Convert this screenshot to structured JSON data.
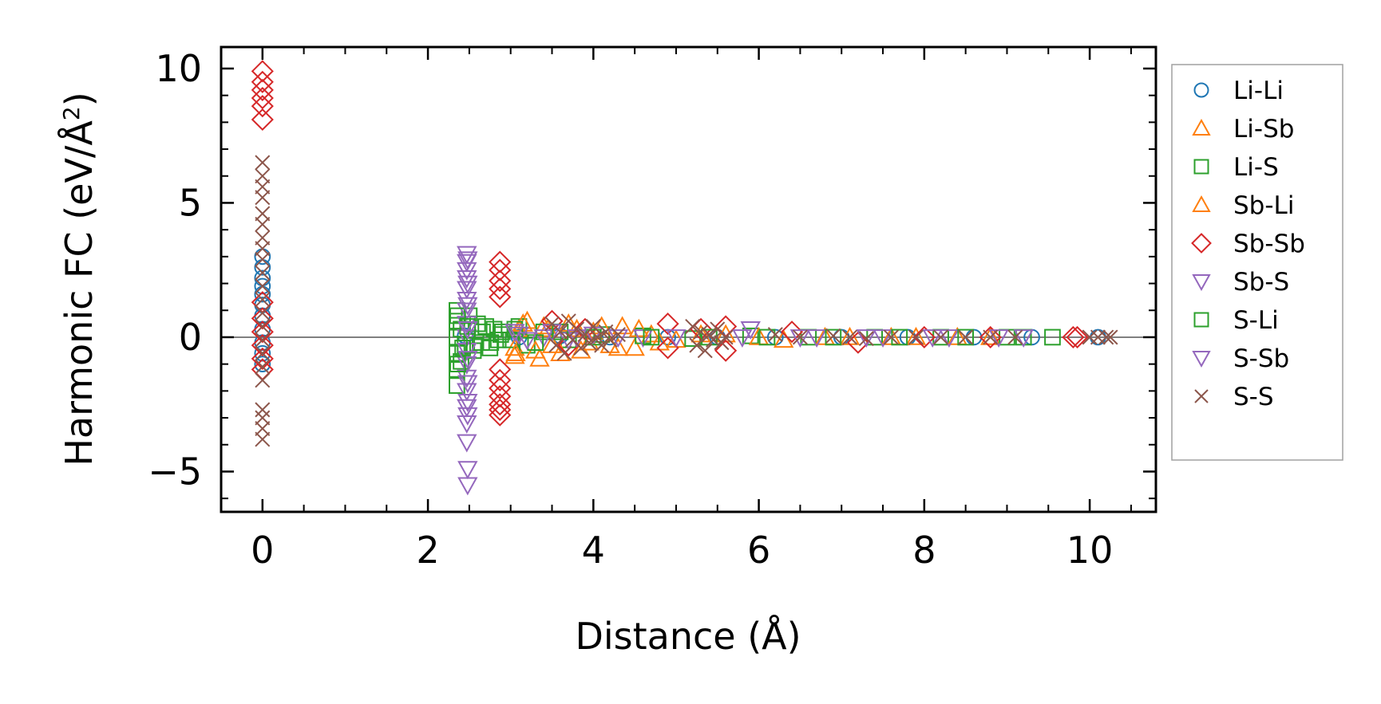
{
  "chart_data": {
    "type": "scatter",
    "xlabel": "Distance (Å)",
    "ylabel_main": "Harmonic FC (eV/Å",
    "ylabel_sup": "2",
    "ylabel_close": ")",
    "xlim": [
      -0.5,
      10.8
    ],
    "ylim": [
      -6.5,
      10.8
    ],
    "x_ticks": [
      0,
      2,
      4,
      6,
      8,
      10
    ],
    "x_tick_labels": [
      "0",
      "2",
      "4",
      "6",
      "8",
      "10"
    ],
    "y_ticks": [
      -5,
      0,
      5,
      10
    ],
    "y_tick_labels": [
      "−5",
      "0",
      "5",
      "10"
    ],
    "zero_line": true,
    "grid": false,
    "legend_position": "outside-right",
    "colors": {
      "blue": "#1f77b4",
      "orange": "#ff7f0e",
      "green": "#2ca02c",
      "red": "#d62728",
      "purple": "#9467bd",
      "brown": "#8c564b",
      "zero_line": "#808080"
    },
    "series": [
      {
        "name": "Li-Li",
        "marker": "circle",
        "color": "#1f77b4",
        "points": [
          [
            0,
            3.0
          ],
          [
            0,
            2.6
          ],
          [
            0,
            2.2
          ],
          [
            0,
            1.9
          ],
          [
            0,
            1.6
          ],
          [
            0,
            1.2
          ],
          [
            0,
            0.8
          ],
          [
            0,
            0.3
          ],
          [
            0,
            -0.2
          ],
          [
            0,
            -0.6
          ],
          [
            0,
            -1.0
          ],
          [
            2.45,
            0.05
          ],
          [
            3.1,
            0.0
          ],
          [
            3.6,
            0.05
          ],
          [
            4.2,
            0.0
          ],
          [
            4.9,
            0.0
          ],
          [
            5.5,
            0.0
          ],
          [
            6.2,
            0.0
          ],
          [
            7.0,
            0.0
          ],
          [
            7.8,
            0.0
          ],
          [
            8.6,
            0.0
          ],
          [
            9.3,
            0.0
          ],
          [
            10.1,
            0.0
          ]
        ]
      },
      {
        "name": "Li-Sb",
        "marker": "triangle-up",
        "color": "#ff7f0e",
        "points": [
          [
            3.05,
            -0.7
          ],
          [
            3.05,
            -0.4
          ],
          [
            3.1,
            0.3
          ],
          [
            3.2,
            0.6
          ],
          [
            3.35,
            -0.8
          ],
          [
            3.4,
            0.4
          ],
          [
            3.5,
            -0.3
          ],
          [
            3.7,
            0.5
          ],
          [
            3.85,
            -0.5
          ],
          [
            4.0,
            0.2
          ],
          [
            4.2,
            -0.3
          ],
          [
            4.35,
            0.4
          ],
          [
            4.5,
            -0.4
          ],
          [
            4.7,
            0.1
          ],
          [
            5.0,
            -0.1
          ],
          [
            5.6,
            0.1
          ],
          [
            6.3,
            -0.1
          ],
          [
            7.1,
            0.0
          ],
          [
            7.9,
            0.0
          ],
          [
            8.8,
            0.0
          ]
        ]
      },
      {
        "name": "Li-S",
        "marker": "square",
        "color": "#2ca02c",
        "points": [
          [
            2.35,
            -1.8
          ],
          [
            2.35,
            -1.2
          ],
          [
            2.35,
            -0.6
          ],
          [
            2.35,
            0.0
          ],
          [
            2.35,
            0.6
          ],
          [
            2.35,
            1.0
          ],
          [
            2.4,
            -0.9
          ],
          [
            2.4,
            0.3
          ],
          [
            2.45,
            -0.3
          ],
          [
            2.5,
            0.8
          ],
          [
            2.55,
            -0.5
          ],
          [
            2.6,
            0.5
          ],
          [
            2.65,
            -0.2
          ],
          [
            2.7,
            0.4
          ],
          [
            2.75,
            -0.4
          ],
          [
            2.8,
            0.3
          ],
          [
            2.85,
            -0.1
          ],
          [
            2.9,
            0.2
          ],
          [
            3.0,
            -0.1
          ],
          [
            3.1,
            0.4
          ],
          [
            3.2,
            -0.3
          ],
          [
            3.4,
            0.2
          ],
          [
            3.7,
            -0.1
          ],
          [
            4.1,
            0.1
          ],
          [
            4.6,
            0.05
          ],
          [
            5.2,
            -0.05
          ],
          [
            5.9,
            0.05
          ],
          [
            6.6,
            0.0
          ],
          [
            7.4,
            0.0
          ],
          [
            8.2,
            0.0
          ],
          [
            9.0,
            0.0
          ],
          [
            9.55,
            0.0
          ]
        ]
      },
      {
        "name": "Sb-Li",
        "marker": "triangle-up",
        "color": "#ff7f0e",
        "points": [
          [
            3.06,
            -0.6
          ],
          [
            3.15,
            0.5
          ],
          [
            3.3,
            -0.5
          ],
          [
            3.45,
            0.3
          ],
          [
            3.6,
            -0.6
          ],
          [
            3.8,
            0.3
          ],
          [
            3.95,
            -0.2
          ],
          [
            4.1,
            0.4
          ],
          [
            4.3,
            -0.4
          ],
          [
            4.55,
            0.3
          ],
          [
            4.8,
            -0.2
          ],
          [
            5.3,
            0.1
          ],
          [
            6.0,
            0.0
          ],
          [
            6.8,
            0.0
          ],
          [
            7.6,
            0.0
          ],
          [
            8.4,
            0.0
          ]
        ]
      },
      {
        "name": "Sb-Sb",
        "marker": "diamond",
        "color": "#d62728",
        "points": [
          [
            0,
            9.9
          ],
          [
            0,
            9.5
          ],
          [
            0,
            9.2
          ],
          [
            0,
            8.9
          ],
          [
            0,
            8.6
          ],
          [
            0,
            8.1
          ],
          [
            0,
            1.3
          ],
          [
            0,
            0.7
          ],
          [
            0,
            0.2
          ],
          [
            0,
            -0.3
          ],
          [
            0,
            -0.8
          ],
          [
            0,
            -1.2
          ],
          [
            2.87,
            2.8
          ],
          [
            2.87,
            2.5
          ],
          [
            2.87,
            2.1
          ],
          [
            2.87,
            1.8
          ],
          [
            2.87,
            1.5
          ],
          [
            2.87,
            -1.2
          ],
          [
            2.87,
            -1.6
          ],
          [
            2.87,
            -1.9
          ],
          [
            2.87,
            -2.2
          ],
          [
            2.87,
            -2.5
          ],
          [
            2.87,
            -2.7
          ],
          [
            2.87,
            -2.9
          ],
          [
            3.5,
            0.6
          ],
          [
            3.7,
            -0.3
          ],
          [
            3.9,
            0.3
          ],
          [
            4.9,
            0.5
          ],
          [
            4.9,
            -0.4
          ],
          [
            5.3,
            0.3
          ],
          [
            5.6,
            0.4
          ],
          [
            5.6,
            -0.5
          ],
          [
            6.4,
            0.2
          ],
          [
            7.2,
            -0.2
          ],
          [
            8.0,
            0.0
          ],
          [
            8.8,
            0.0
          ],
          [
            9.8,
            0.0
          ],
          [
            9.85,
            0.0
          ]
        ]
      },
      {
        "name": "Sb-S",
        "marker": "triangle-down",
        "color": "#9467bd",
        "points": [
          [
            2.47,
            3.1
          ],
          [
            2.47,
            2.8
          ],
          [
            2.47,
            2.5
          ],
          [
            2.47,
            2.2
          ],
          [
            2.47,
            1.8
          ],
          [
            2.47,
            1.4
          ],
          [
            2.47,
            1.0
          ],
          [
            2.47,
            0.5
          ],
          [
            2.47,
            0.0
          ],
          [
            2.47,
            -0.5
          ],
          [
            2.47,
            -1.0
          ],
          [
            2.47,
            -1.5
          ],
          [
            2.47,
            -2.0
          ],
          [
            2.47,
            -2.6
          ],
          [
            2.47,
            -3.2
          ],
          [
            2.47,
            -3.9
          ],
          [
            3.1,
            0.1
          ],
          [
            3.4,
            0.0
          ],
          [
            3.7,
            -0.1
          ],
          [
            4.0,
            0.1
          ],
          [
            4.6,
            0.0
          ],
          [
            5.9,
            0.3
          ],
          [
            6.7,
            0.0
          ],
          [
            7.5,
            0.0
          ],
          [
            8.3,
            0.0
          ]
        ]
      },
      {
        "name": "S-Li",
        "marker": "square",
        "color": "#2ca02c",
        "points": [
          [
            2.36,
            -1.0
          ],
          [
            2.36,
            0.8
          ],
          [
            2.42,
            -0.4
          ],
          [
            2.48,
            0.4
          ],
          [
            2.56,
            -0.3
          ],
          [
            2.66,
            0.2
          ],
          [
            2.76,
            -0.2
          ],
          [
            2.88,
            0.1
          ],
          [
            3.05,
            0.3
          ],
          [
            3.3,
            -0.2
          ],
          [
            3.6,
            0.2
          ],
          [
            4.0,
            0.0
          ],
          [
            4.7,
            0.0
          ],
          [
            5.4,
            0.0
          ],
          [
            6.1,
            0.0
          ],
          [
            6.9,
            0.0
          ],
          [
            7.7,
            0.0
          ],
          [
            8.5,
            0.0
          ],
          [
            9.2,
            0.0
          ]
        ]
      },
      {
        "name": "S-Sb",
        "marker": "triangle-down",
        "color": "#9467bd",
        "points": [
          [
            2.48,
            2.9
          ],
          [
            2.48,
            2.0
          ],
          [
            2.48,
            1.2
          ],
          [
            2.48,
            0.3
          ],
          [
            2.48,
            -0.8
          ],
          [
            2.48,
            -1.7
          ],
          [
            2.48,
            -2.4
          ],
          [
            2.48,
            -2.9
          ],
          [
            2.48,
            -4.9
          ],
          [
            2.48,
            -5.5
          ],
          [
            3.05,
            0.2
          ],
          [
            3.2,
            -0.1
          ],
          [
            3.5,
            0.2
          ],
          [
            3.8,
            0.0
          ],
          [
            4.3,
            0.0
          ],
          [
            5.0,
            0.0
          ],
          [
            5.8,
            0.0
          ],
          [
            6.5,
            0.0
          ],
          [
            7.3,
            0.0
          ],
          [
            8.1,
            0.0
          ],
          [
            8.9,
            0.0
          ],
          [
            9.2,
            0.0
          ]
        ]
      },
      {
        "name": "S-S",
        "marker": "x",
        "color": "#8c564b",
        "points": [
          [
            0,
            6.5
          ],
          [
            0,
            6.0
          ],
          [
            0,
            5.6
          ],
          [
            0,
            5.2
          ],
          [
            0,
            4.6
          ],
          [
            0,
            4.2
          ],
          [
            0,
            3.7
          ],
          [
            0,
            3.3
          ],
          [
            0,
            2.9
          ],
          [
            0,
            2.4
          ],
          [
            0,
            1.9
          ],
          [
            0,
            1.4
          ],
          [
            0,
            0.9
          ],
          [
            0,
            0.4
          ],
          [
            0,
            -0.1
          ],
          [
            0,
            -0.6
          ],
          [
            0,
            -1.1
          ],
          [
            0,
            -1.6
          ],
          [
            0,
            -2.7
          ],
          [
            0,
            -3.0
          ],
          [
            0,
            -3.4
          ],
          [
            0,
            -3.8
          ],
          [
            3.5,
            0.5
          ],
          [
            3.55,
            -0.3
          ],
          [
            3.6,
            0.2
          ],
          [
            3.65,
            -0.6
          ],
          [
            3.7,
            0.6
          ],
          [
            3.75,
            -0.1
          ],
          [
            3.8,
            0.3
          ],
          [
            3.85,
            -0.4
          ],
          [
            3.9,
            0.1
          ],
          [
            3.95,
            -0.2
          ],
          [
            4.0,
            0.4
          ],
          [
            4.05,
            0.0
          ],
          [
            4.1,
            -0.3
          ],
          [
            4.15,
            0.2
          ],
          [
            4.2,
            -0.1
          ],
          [
            4.3,
            0.1
          ],
          [
            5.2,
            0.4
          ],
          [
            5.25,
            -0.3
          ],
          [
            5.3,
            0.2
          ],
          [
            5.35,
            -0.5
          ],
          [
            5.4,
            0.1
          ],
          [
            5.45,
            -0.1
          ],
          [
            5.5,
            0.3
          ],
          [
            5.55,
            -0.2
          ],
          [
            5.6,
            0.0
          ],
          [
            6.2,
            0.1
          ],
          [
            6.5,
            0.0
          ],
          [
            6.9,
            0.05
          ],
          [
            7.1,
            0.0
          ],
          [
            7.3,
            -0.05
          ],
          [
            7.6,
            0.0
          ],
          [
            7.9,
            0.0
          ],
          [
            8.2,
            0.0
          ],
          [
            8.5,
            0.0
          ],
          [
            8.8,
            0.0
          ],
          [
            9.1,
            0.0
          ],
          [
            10.0,
            0.0
          ],
          [
            10.1,
            0.0
          ],
          [
            10.2,
            0.0
          ],
          [
            10.25,
            0.0
          ]
        ]
      }
    ]
  }
}
